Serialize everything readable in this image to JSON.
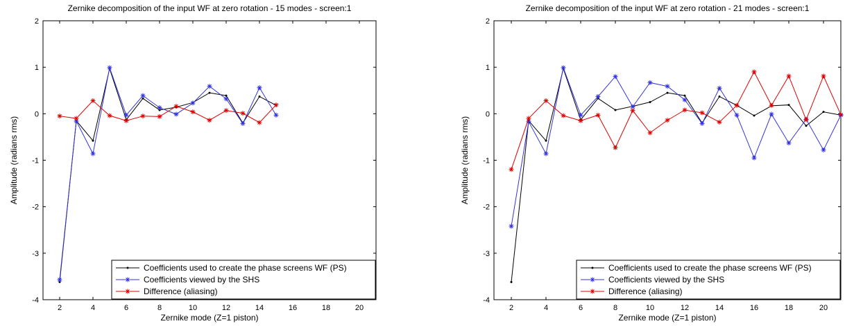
{
  "chart_data": [
    {
      "type": "line",
      "title": "Zernike decomposition of the input WF at zero rotation - 15 modes - screen:1",
      "xlabel": "Zernike mode (Z=1 piston)",
      "ylabel": "Amplitude (radians rms)",
      "xlim": [
        1,
        21
      ],
      "ylim": [
        -4,
        2
      ],
      "xticks": [
        "2",
        "4",
        "6",
        "8",
        "10",
        "12",
        "14",
        "16",
        "18",
        "20"
      ],
      "yticks": [
        "2",
        "1",
        "0",
        "-1",
        "-2",
        "-3",
        "-4"
      ],
      "legend_position": "bottom-right",
      "grid": false,
      "series": [
        {
          "name": "Coefficients used to create the phase screens WF (PS)",
          "color": "#000000",
          "marker": "dot",
          "x": [
            2,
            3,
            4,
            5,
            6,
            7,
            8,
            9,
            10,
            11,
            12,
            13,
            14,
            15
          ],
          "values": [
            -3.62,
            -0.15,
            -0.58,
            0.97,
            -0.13,
            0.33,
            0.08,
            0.14,
            0.24,
            0.45,
            0.39,
            -0.2,
            0.37,
            0.18
          ]
        },
        {
          "name": "Coefficients viewed by the SHS",
          "color": "#3333dd",
          "marker": "star",
          "x": [
            2,
            3,
            4,
            5,
            6,
            7,
            8,
            9,
            10,
            11,
            12,
            13,
            14,
            15
          ],
          "values": [
            -3.57,
            -0.16,
            -0.86,
            0.99,
            -0.03,
            0.39,
            0.13,
            -0.01,
            0.23,
            0.59,
            0.32,
            -0.21,
            0.56,
            -0.03
          ]
        },
        {
          "name": "Difference (aliasing)",
          "color": "#dd0000",
          "marker": "star",
          "x": [
            2,
            3,
            4,
            5,
            6,
            7,
            8,
            9,
            10,
            11,
            12,
            13,
            14,
            15
          ],
          "values": [
            -0.05,
            -0.1,
            0.28,
            -0.04,
            -0.15,
            -0.05,
            -0.06,
            0.16,
            0.04,
            -0.14,
            0.07,
            0.01,
            -0.19,
            0.19
          ]
        }
      ]
    },
    {
      "type": "line",
      "title": "Zernike decomposition of the input WF at zero rotation - 21 modes - screen:1",
      "xlabel": "Zernike mode (Z=1 piston)",
      "ylabel": "Amplitude (radians rms)",
      "xlim": [
        1,
        21
      ],
      "ylim": [
        -4,
        2
      ],
      "xticks": [
        "2",
        "4",
        "6",
        "8",
        "10",
        "12",
        "14",
        "16",
        "18",
        "20"
      ],
      "yticks": [
        "2",
        "1",
        "0",
        "-1",
        "-2",
        "-3",
        "-4"
      ],
      "legend_position": "bottom-right",
      "grid": false,
      "series": [
        {
          "name": "Coefficients used to create the phase screens WF (PS)",
          "color": "#000000",
          "marker": "dot",
          "x": [
            2,
            3,
            4,
            5,
            6,
            7,
            8,
            9,
            10,
            11,
            12,
            13,
            14,
            15,
            16,
            17,
            18,
            19,
            20,
            21
          ],
          "values": [
            -3.62,
            -0.15,
            -0.58,
            0.97,
            -0.13,
            0.33,
            0.08,
            0.16,
            0.25,
            0.45,
            0.39,
            -0.2,
            0.37,
            0.18,
            -0.04,
            0.17,
            0.19,
            -0.26,
            0.04,
            -0.03
          ]
        },
        {
          "name": "Coefficients viewed by the SHS",
          "color": "#3333dd",
          "marker": "star",
          "x": [
            2,
            3,
            4,
            5,
            6,
            7,
            8,
            9,
            10,
            11,
            12,
            13,
            14,
            15,
            16,
            17,
            18,
            19,
            20,
            21
          ],
          "values": [
            -2.42,
            -0.17,
            -0.86,
            0.99,
            -0.03,
            0.37,
            0.8,
            0.15,
            0.67,
            0.59,
            0.3,
            -0.21,
            0.55,
            -0.03,
            -0.95,
            -0.01,
            -0.63,
            -0.12,
            -0.78,
            -0.03
          ]
        },
        {
          "name": "Difference (aliasing)",
          "color": "#dd0000",
          "marker": "star",
          "x": [
            2,
            3,
            4,
            5,
            6,
            7,
            8,
            9,
            10,
            11,
            12,
            13,
            14,
            15,
            16,
            17,
            18,
            19,
            20,
            21
          ],
          "values": [
            -1.2,
            -0.1,
            0.28,
            -0.04,
            -0.15,
            -0.03,
            -0.73,
            0.07,
            -0.41,
            -0.14,
            0.08,
            0.02,
            -0.18,
            0.18,
            0.9,
            0.18,
            0.81,
            -0.13,
            0.81,
            -0.02
          ]
        }
      ]
    }
  ]
}
